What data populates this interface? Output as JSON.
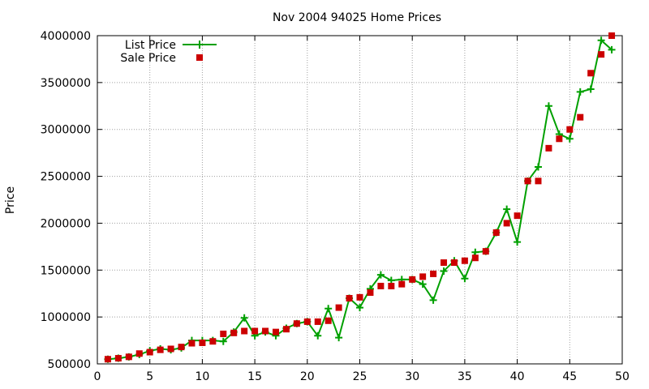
{
  "chart_data": {
    "type": "line",
    "title": "Nov 2004 94025 Home Prices",
    "xlabel": "",
    "ylabel": "Price",
    "xlim": [
      0,
      50
    ],
    "ylim": [
      500000,
      4000000
    ],
    "grid": true,
    "legend_position": "top-left",
    "x_ticks": [
      "0",
      "5",
      "10",
      "15",
      "20",
      "25",
      "30",
      "35",
      "40",
      "45",
      "50"
    ],
    "y_ticks": [
      "500000",
      "1000000",
      "1500000",
      "2000000",
      "2500000",
      "3000000",
      "3500000",
      "4000000"
    ],
    "colors": {
      "list": "#00a000",
      "sale": "#cc0000"
    },
    "series": [
      {
        "name": "List Price",
        "style": "line-plus",
        "x": [
          1,
          2,
          3,
          4,
          5,
          6,
          7,
          8,
          9,
          10,
          11,
          12,
          13,
          14,
          15,
          16,
          17,
          18,
          19,
          20,
          21,
          22,
          23,
          24,
          25,
          26,
          27,
          28,
          29,
          30,
          31,
          32,
          33,
          34,
          35,
          36,
          37,
          38,
          39,
          40,
          41,
          42,
          43,
          44,
          45,
          46,
          47,
          48,
          49
        ],
        "y": [
          550000,
          560000,
          575000,
          600000,
          640000,
          660000,
          650000,
          670000,
          750000,
          750000,
          750000,
          740000,
          840000,
          990000,
          800000,
          840000,
          800000,
          880000,
          930000,
          950000,
          800000,
          1090000,
          780000,
          1200000,
          1100000,
          1300000,
          1450000,
          1390000,
          1400000,
          1400000,
          1350000,
          1180000,
          1490000,
          1600000,
          1410000,
          1690000,
          1700000,
          1900000,
          2150000,
          1800000,
          2450000,
          2600000,
          3250000,
          2950000,
          2900000,
          3400000,
          3430000,
          3950000,
          3850000
        ]
      },
      {
        "name": "Sale Price",
        "style": "square",
        "x": [
          1,
          2,
          3,
          4,
          5,
          6,
          7,
          8,
          9,
          10,
          11,
          12,
          13,
          14,
          15,
          16,
          17,
          18,
          19,
          20,
          21,
          22,
          23,
          24,
          25,
          26,
          27,
          28,
          29,
          30,
          31,
          32,
          33,
          34,
          35,
          36,
          37,
          38,
          39,
          40,
          41,
          42,
          43,
          44,
          45,
          46,
          47,
          48,
          49
        ],
        "y": [
          550000,
          560000,
          575000,
          610000,
          625000,
          650000,
          660000,
          680000,
          720000,
          725000,
          740000,
          820000,
          830000,
          850000,
          850000,
          850000,
          840000,
          870000,
          930000,
          950000,
          950000,
          960000,
          1100000,
          1200000,
          1210000,
          1260000,
          1330000,
          1330000,
          1350000,
          1400000,
          1430000,
          1460000,
          1580000,
          1580000,
          1600000,
          1630000,
          1700000,
          1900000,
          2000000,
          2080000,
          2450000,
          2450000,
          2800000,
          2900000,
          3000000,
          3130000,
          3600000,
          3800000,
          4000000
        ]
      }
    ]
  }
}
